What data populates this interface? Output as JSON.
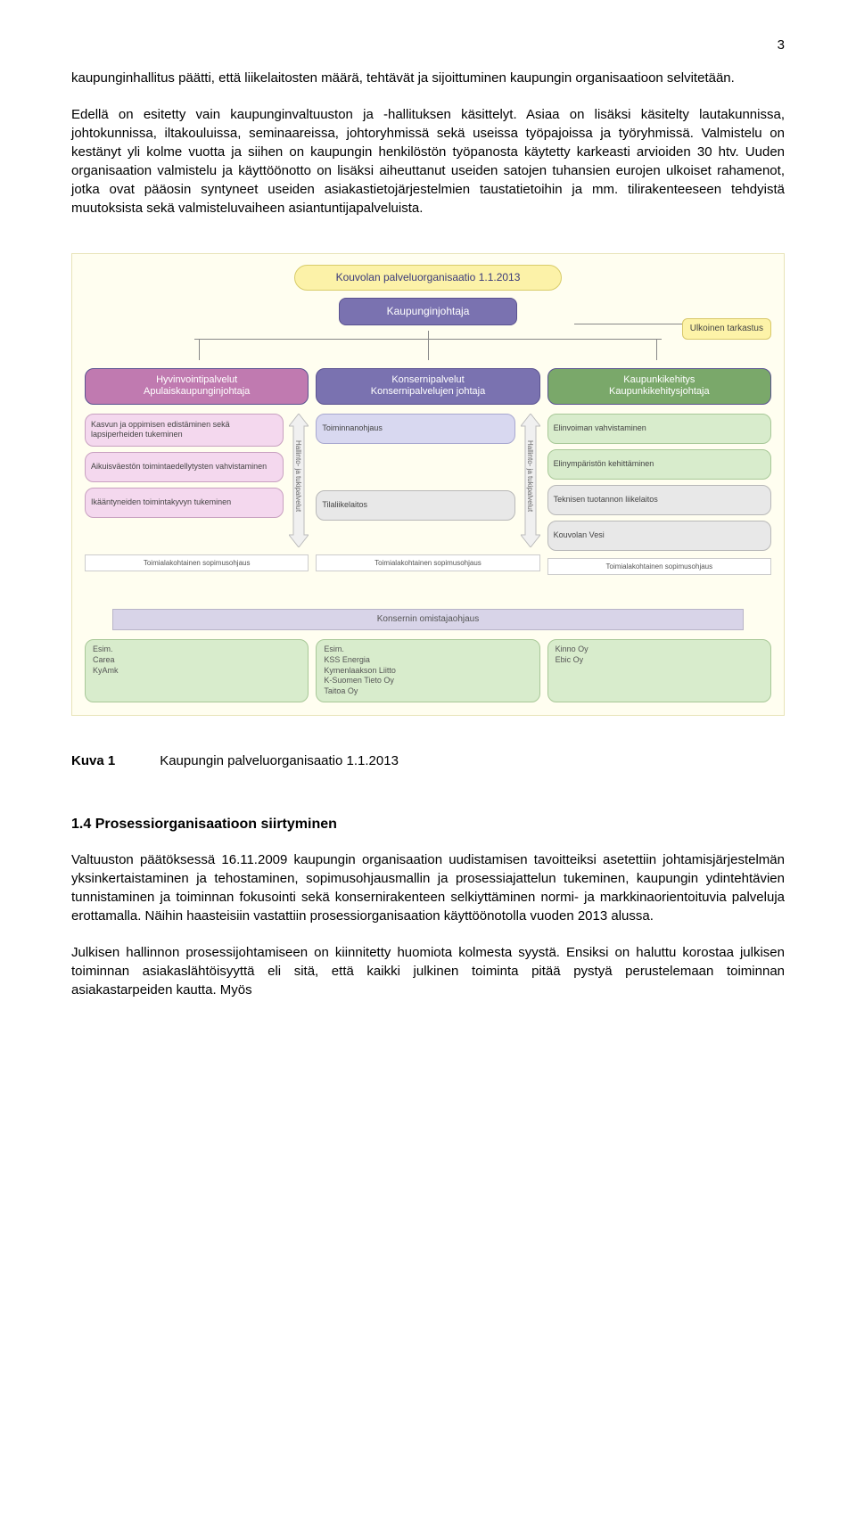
{
  "page_number": "3",
  "paragraph_1": "kaupunginhallitus päätti, että liikelaitosten määrä, tehtävät ja sijoittuminen kaupungin organisaatioon selvitetään.",
  "paragraph_2": "Edellä on esitetty vain kaupunginvaltuuston ja -hallituksen käsittelyt. Asiaa on lisäksi käsitelty lautakunnissa, johtokunnissa, iltakouluissa, seminaareissa, johtoryhmissä sekä useissa työpajoissa ja työryhmissä. Valmistelu on kestänyt yli kolme vuotta ja siihen on kaupungin henkilöstön työpanosta käytetty karkeasti arvioiden 30 htv. Uuden organisaation valmistelu ja käyttöönotto on lisäksi aiheuttanut useiden satojen tuhansien eurojen ulkoiset rahamenot, jotka ovat pääosin syntyneet useiden asiakastietojärjestelmien taustatietoihin ja mm. tilirakenteeseen tehdyistä muutoksista sekä valmisteluvaiheen asiantuntijapalveluista.",
  "chart": {
    "title": "Kouvolan palveluorganisaatio 1.1.2013",
    "director": "Kaupunginjohtaja",
    "audit": "Ulkoinen tarkastus",
    "columns": [
      {
        "header_l1": "Hyvinvointipalvelut",
        "header_l2": "Apulaiskaupunginjohtaja",
        "color": "pink",
        "units": [
          "Kasvun ja oppimisen edistäminen sekä lapsiperheiden tukeminen",
          "Aikuisväestön toimintaedellytysten vahvistaminen",
          "Ikääntyneiden toimintakyvyn tukeminen"
        ],
        "arrow_label": "Hallinto- ja tukipalvelut"
      },
      {
        "header_l1": "Konsernipalvelut",
        "header_l2": "Konsernipalvelujen johtaja",
        "color": "blue",
        "units": [
          "Toiminnanohjaus"
        ],
        "extra": "Tilaliikelaitos",
        "arrow_label": "Hallinto- ja tukipalvelut"
      },
      {
        "header_l1": "Kaupunkikehitys",
        "header_l2": "Kaupunkikehitysjohtaja",
        "color": "green",
        "units": [
          "Elinvoiman vahvistaminen",
          "Elinympäristön kehittäminen"
        ],
        "extras": [
          "Teknisen tuotannon liikelaitos",
          "Kouvolan Vesi"
        ]
      }
    ],
    "sopimus_label": "Toimialakohtainen sopimusohjaus",
    "kons_bar": "Konsernin omistajaohjaus",
    "footer_boxes": [
      "Esim.\nCarea\nKyAmk",
      "Esim.\nKSS Energia\nKymenlaakson Liitto\nK-Suomen Tieto Oy\nTaitoa Oy",
      "Kinno Oy\nEbic Oy"
    ],
    "colors": {
      "bg": "#fffef0",
      "title_bg": "#fcf2a8",
      "director_bg": "#7a72b0",
      "pink": "#f4d8ee",
      "blue": "#d8d8f0",
      "green": "#d8eccc",
      "gray": "#e8e8e8",
      "kons_bg": "#d8d4e8",
      "audit_bg": "#fdf3a8"
    }
  },
  "figure_label": "Kuva 1",
  "figure_caption": "Kaupungin palveluorganisaatio 1.1.2013",
  "section_1_4_head": "1.4 Prosessiorganisaatioon siirtyminen",
  "paragraph_3": "Valtuuston päätöksessä 16.11.2009 kaupungin organisaation uudistamisen tavoitteiksi asetettiin johtamisjärjestelmän yksinkertaistaminen ja tehostaminen, sopimusohjausmallin ja prosessiajattelun tukeminen, kaupungin ydintehtävien tunnistaminen ja toiminnan fokusointi sekä konsernirakenteen selkiyttäminen normi- ja markkinaorientoituvia palveluja erottamalla. Näihin haasteisiin vastattiin prosessiorganisaation käyttöönotolla vuoden 2013 alussa.",
  "paragraph_4": "Julkisen hallinnon prosessijohtamiseen on kiinnitetty huomiota kolmesta syystä. Ensiksi on haluttu korostaa julkisen toiminnan asiakaslähtöisyyttä eli sitä, että kaikki julkinen toiminta pitää pystyä perustelemaan toiminnan asiakastarpeiden kautta. Myös"
}
